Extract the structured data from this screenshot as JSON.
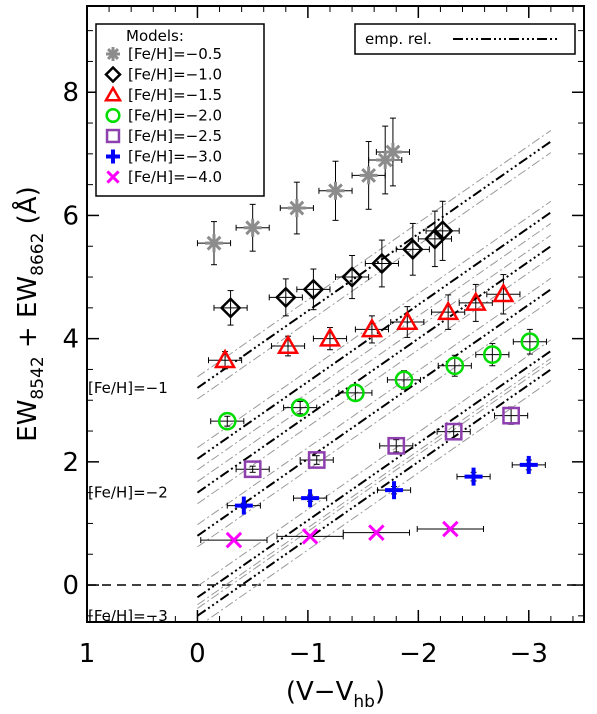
{
  "chart_data": {
    "type": "scatter",
    "xlabel": "(V−V",
    "xlabel_sub": "hb",
    "xlabel_close": ")",
    "ylabel_part1": "EW",
    "ylabel_sub1": "8542",
    "ylabel_part2": " + EW",
    "ylabel_sub2": "8662",
    "ylabel_unit": " (Å)",
    "xlim": [
      1,
      -3.5
    ],
    "ylim": [
      -0.6,
      9.4
    ],
    "xticks": [
      1,
      0,
      -1,
      -2,
      -3
    ],
    "xtick_labels": [
      "1",
      "0",
      "−1",
      "−2",
      "−3"
    ],
    "yticks": [
      0,
      2,
      4,
      6,
      8
    ],
    "ytick_labels": [
      "0",
      "2",
      "4",
      "6",
      "8"
    ],
    "zero_line": 0,
    "legend": {
      "title": "Models:",
      "placement": "top-left"
    },
    "emp_legend": {
      "label": "emp. rel.",
      "placement": "top-right"
    },
    "series": [
      {
        "name": "[Fe/H]=−0.5",
        "marker": "asterisk",
        "color": "#8c8c8c",
        "x": [
          -0.15,
          -0.5,
          -0.9,
          -1.25,
          -1.55,
          -1.7,
          -1.77
        ],
        "y": [
          5.55,
          5.8,
          6.12,
          6.4,
          6.65,
          6.9,
          7.03
        ],
        "xerr": [
          0.15,
          0.15,
          0.15,
          0.15,
          0.15,
          0.15,
          0.15
        ],
        "yerr": [
          0.35,
          0.38,
          0.42,
          0.48,
          0.55,
          0.55,
          0.55
        ]
      },
      {
        "name": "[Fe/H]=−1.0",
        "marker": "diamond",
        "color": "#000000",
        "x": [
          -0.3,
          -0.8,
          -1.05,
          -1.4,
          -1.67,
          -1.95,
          -2.15,
          -2.22
        ],
        "y": [
          4.5,
          4.67,
          4.8,
          5.0,
          5.22,
          5.45,
          5.62,
          5.75
        ],
        "xerr": [
          0.15,
          0.15,
          0.15,
          0.15,
          0.15,
          0.15,
          0.15,
          0.15
        ],
        "yerr": [
          0.28,
          0.3,
          0.33,
          0.35,
          0.38,
          0.42,
          0.45,
          0.48
        ]
      },
      {
        "name": "[Fe/H]=−1.5",
        "marker": "triangle",
        "color": "#ff0000",
        "x": [
          -0.25,
          -0.82,
          -1.2,
          -1.58,
          -1.9,
          -2.27,
          -2.52,
          -2.77
        ],
        "y": [
          3.65,
          3.88,
          4.0,
          4.15,
          4.27,
          4.43,
          4.58,
          4.72
        ],
        "xerr": [
          0.15,
          0.15,
          0.15,
          0.15,
          0.15,
          0.15,
          0.15,
          0.15
        ],
        "yerr": [
          0.14,
          0.16,
          0.18,
          0.22,
          0.25,
          0.28,
          0.3,
          0.32
        ]
      },
      {
        "name": "[Fe/H]=−2.0",
        "marker": "circle",
        "color": "#00dd00",
        "x": [
          -0.27,
          -0.93,
          -1.43,
          -1.87,
          -2.33,
          -2.67,
          -3.01
        ],
        "y": [
          2.66,
          2.88,
          3.12,
          3.33,
          3.56,
          3.74,
          3.95
        ],
        "xerr": [
          0.15,
          0.15,
          0.15,
          0.15,
          0.15,
          0.15,
          0.15
        ],
        "yerr": [
          0.08,
          0.1,
          0.12,
          0.15,
          0.17,
          0.18,
          0.2
        ]
      },
      {
        "name": "[Fe/H]=−2.5",
        "marker": "square",
        "color": "#8e3fae",
        "x": [
          -0.5,
          -1.08,
          -1.8,
          -2.32,
          -2.84
        ],
        "y": [
          1.88,
          2.03,
          2.26,
          2.49,
          2.75
        ],
        "xerr": [
          0.15,
          0.15,
          0.15,
          0.15,
          0.15
        ],
        "yerr": [
          0.05,
          0.07,
          0.1,
          0.12,
          0.14
        ]
      },
      {
        "name": "[Fe/H]=−3.0",
        "marker": "plus",
        "color": "#0000ff",
        "x": [
          -0.42,
          -1.02,
          -1.78,
          -2.5,
          -3.0
        ],
        "y": [
          1.29,
          1.41,
          1.54,
          1.76,
          1.95
        ],
        "xerr": [
          0.15,
          0.15,
          0.15,
          0.15,
          0.15
        ],
        "yerr": [
          0.04,
          0.05,
          0.06,
          0.07,
          0.08
        ]
      },
      {
        "name": "[Fe/H]=−4.0",
        "marker": "cross",
        "color": "#ff00ff",
        "x": [
          -0.33,
          -1.02,
          -1.62,
          -2.29
        ],
        "y": [
          0.73,
          0.79,
          0.85,
          0.91
        ],
        "xerr": [
          0.3,
          0.3,
          0.3,
          0.3
        ],
        "yerr": [
          0,
          0,
          0,
          0
        ]
      }
    ],
    "empirical_relations": [
      {
        "label": "[Fe/H]=−1",
        "x": [
          0,
          -3.2
        ],
        "y": [
          3.2,
          7.2
        ]
      },
      {
        "label": "[Fe/H]=−2",
        "x": [
          0,
          -3.2
        ],
        "y": [
          1.5,
          5.5
        ]
      },
      {
        "label": "[Fe/H]=−3",
        "x": [
          0,
          -3.2
        ],
        "y": [
          -0.5,
          3.5
        ]
      },
      {
        "label": "",
        "x": [
          0,
          -3.2
        ],
        "y": [
          2.05,
          6.05
        ]
      },
      {
        "label": "",
        "x": [
          0,
          -3.2
        ],
        "y": [
          0.8,
          4.8
        ]
      },
      {
        "label": "",
        "x": [
          0,
          -3.2
        ],
        "y": [
          -0.2,
          3.8
        ]
      }
    ],
    "empirical_band_offset": 0.18
  }
}
